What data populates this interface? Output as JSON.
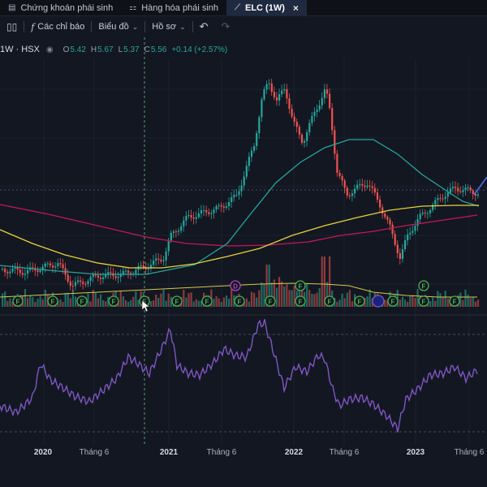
{
  "tabs": [
    {
      "icon": "document-dollar-icon",
      "label": "Chứng khoán phái sinh",
      "active": false
    },
    {
      "icon": "chart-bars-icon",
      "label": "Hàng hóa phái sinh",
      "active": false
    },
    {
      "icon": "chart-line-icon",
      "label": "ELC (1W)",
      "active": true
    }
  ],
  "toolbar": {
    "indicators_label": "Các chỉ báo",
    "chart_label": "Biểu đồ",
    "profile_label": "Hồ sơ"
  },
  "legend": {
    "symbol": "1W · HSX",
    "open_label": "O",
    "open": "5.42",
    "high_label": "H",
    "high": "5.67",
    "low_label": "L",
    "low": "5.37",
    "close_label": "C",
    "close": "5.56",
    "change": "+0.14 (+2.57%)"
  },
  "chart_data": {
    "type": "candlestick",
    "interval": "1W",
    "x_axis_labels": [
      "2020",
      "Tháng 6",
      "2021",
      "Tháng 6",
      "2022",
      "Tháng 6",
      "2023",
      "Tháng 6"
    ],
    "colors": {
      "up": "#26a69a",
      "down": "#ef5350",
      "ma_short": "#e6d23a",
      "ma_mid": "#26a69a",
      "ma_long": "#c2185b",
      "oscillator": "#7e57c2"
    },
    "event_marker_label": "F",
    "dividend_marker_label": "D",
    "grid": true
  }
}
